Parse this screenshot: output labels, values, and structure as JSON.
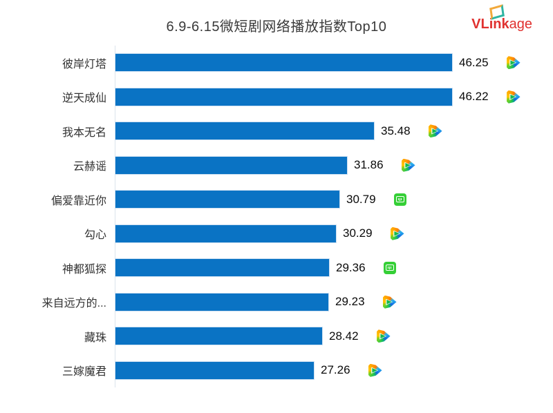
{
  "title": "6.9-6.15微短剧网络播放指数Top10",
  "logo": {
    "bold": "VLink",
    "light": "age",
    "color": "#e0312f",
    "diamond_icon": "vlinkage-diamond"
  },
  "colors": {
    "bar": "#0a73c4",
    "bar_edge": "#cde0f2",
    "axis_line": "#dbe3ec",
    "title_text": "#3a3a3a",
    "category_text": "#333333",
    "value_text": "#0a0a0a",
    "iqiyi_green": "#35cf36",
    "tencent_orange": "#ff9000",
    "tencent_green": "#17b94e",
    "tencent_blue": "#1166e0"
  },
  "chart_data": {
    "type": "bar",
    "orientation": "horizontal",
    "title": "6.9-6.15微短剧网络播放指数Top10",
    "categories": [
      "彼岸灯塔",
      "逆天成仙",
      "我本无名",
      "云赫谣",
      "偏爱靠近你",
      "勾心",
      "神都狐探",
      "来自远方的...",
      "藏珠",
      "三嫁魔君"
    ],
    "values": [
      46.25,
      46.22,
      35.48,
      31.86,
      30.79,
      30.29,
      29.36,
      29.23,
      28.42,
      27.26
    ],
    "value_labels": [
      "46.25",
      "46.22",
      "35.48",
      "31.86",
      "30.79",
      "30.29",
      "29.36",
      "29.23",
      "28.42",
      "27.26"
    ],
    "platform_icons": [
      "tencent-video-icon",
      "tencent-video-icon",
      "tencent-video-icon",
      "tencent-video-icon",
      "iqiyi-icon",
      "tencent-video-icon",
      "iqiyi-icon",
      "tencent-video-icon",
      "tencent-video-icon",
      "tencent-video-icon"
    ],
    "xlabel": "",
    "ylabel": "",
    "xlim": [
      0,
      46.25
    ],
    "grid": false,
    "legend": false,
    "value_labels_shown": true
  }
}
